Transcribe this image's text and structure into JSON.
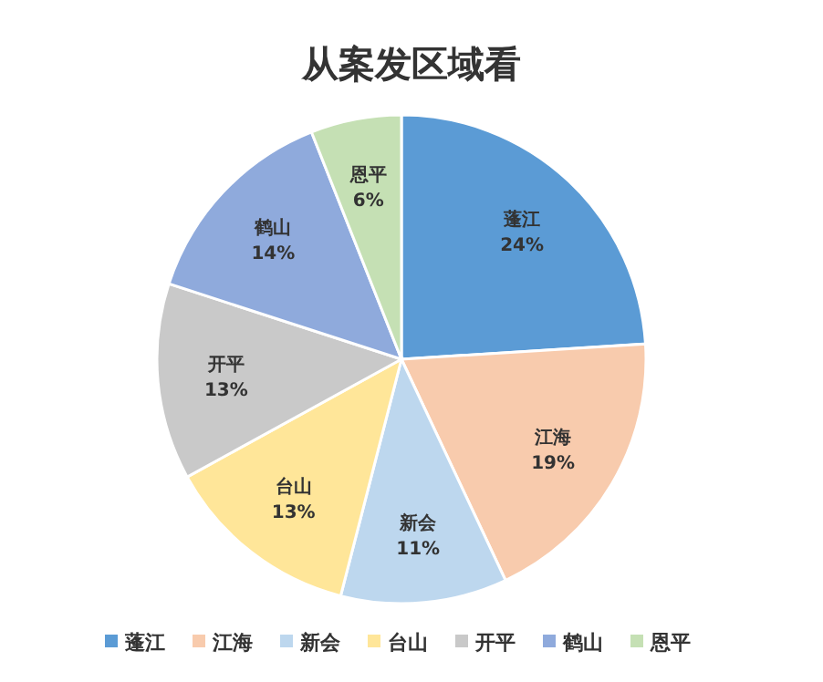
{
  "chart_data": {
    "type": "pie",
    "title": "从案发区域看",
    "categories": [
      "蓬江",
      "江海",
      "新会",
      "台山",
      "开平",
      "鹤山",
      "恩平"
    ],
    "values": [
      24,
      19,
      11,
      13,
      13,
      14,
      6
    ],
    "colors": [
      "#5b9bd5",
      "#f8cbad",
      "#bdd7ee",
      "#ffe699",
      "#c9c9c9",
      "#8faadc",
      "#c5e0b4"
    ],
    "value_labels": [
      "24%",
      "19%",
      "11%",
      "13%",
      "13%",
      "14%",
      "6%"
    ],
    "legend": "bottom"
  }
}
